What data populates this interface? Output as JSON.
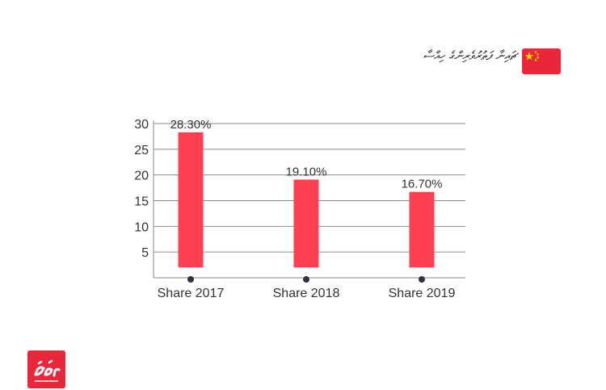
{
  "header": {
    "title": "ޗައިނާ ފަތުރުވެރިންގެ ހިއްސާ",
    "flag_icon": "china-flag-icon"
  },
  "logo": {
    "icon": "brand-logo-icon",
    "glyphs": "މިހާރު",
    "color": "#E8273B"
  },
  "colors": {
    "bar": "#FF4052",
    "grid": "#8a8a8a",
    "marker": "#2d3142",
    "text": "#333333",
    "flag_red": "#E8273B",
    "flag_star": "#FFDE00"
  },
  "chart_data": {
    "type": "bar",
    "categories": [
      "Share 2017",
      "Share 2018",
      "Share 2019"
    ],
    "values": [
      28.3,
      19.1,
      16.7
    ],
    "data_labels": [
      "28.30%",
      "19.10%",
      "16.70%"
    ],
    "y_ticks": [
      "5",
      "10",
      "15",
      "20",
      "25",
      "30"
    ],
    "ylim": [
      0,
      30
    ],
    "grid": true,
    "title": "",
    "xlabel": "",
    "ylabel": ""
  }
}
